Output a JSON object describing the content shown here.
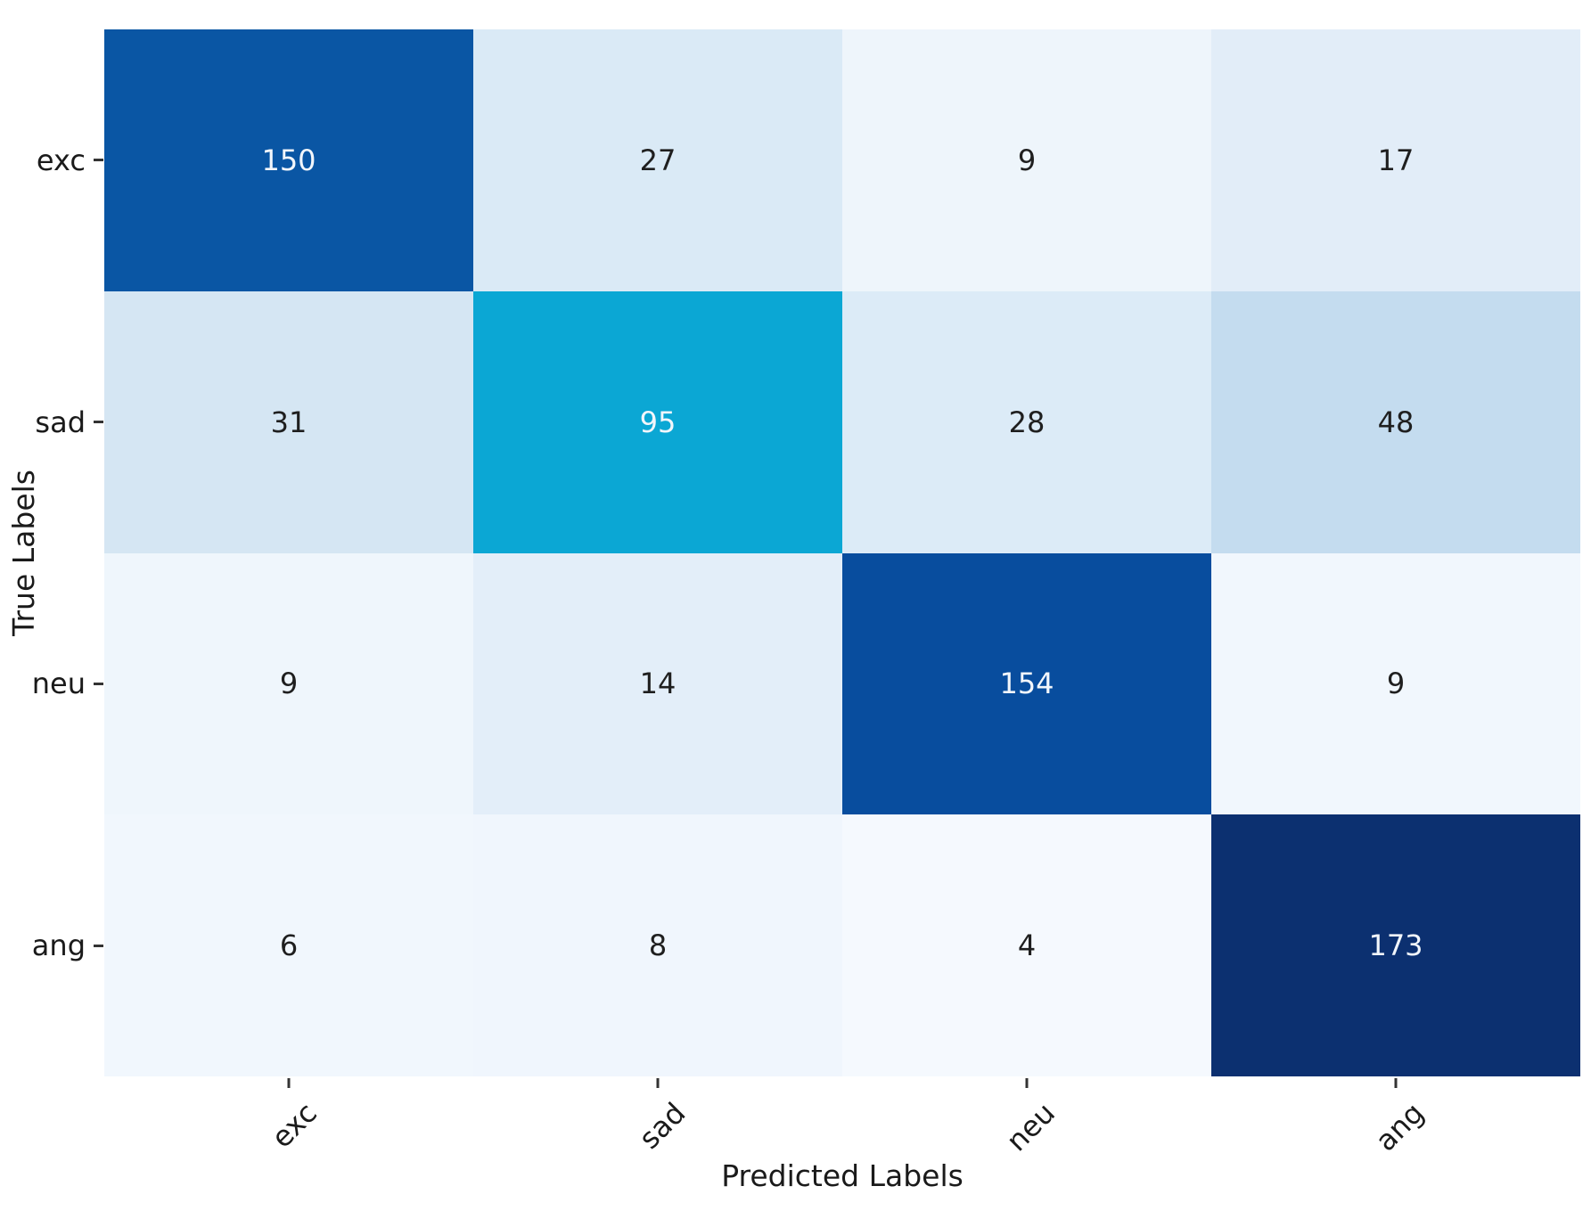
{
  "chart_data": {
    "type": "heatmap",
    "title": "",
    "xlabel": "Predicted Labels",
    "ylabel": "True Labels",
    "x_categories": [
      "exc",
      "sad",
      "neu",
      "ang"
    ],
    "y_categories": [
      "exc",
      "sad",
      "neu",
      "ang"
    ],
    "matrix": [
      [
        150,
        27,
        9,
        17
      ],
      [
        31,
        95,
        28,
        48
      ],
      [
        9,
        14,
        154,
        9
      ],
      [
        6,
        8,
        4,
        173
      ]
    ],
    "value_range": [
      4,
      173
    ],
    "cell_colors": [
      [
        "#0a56a4",
        "#daeaf6",
        "#eef5fb",
        "#e2edf8"
      ],
      [
        "#d5e6f3",
        "#0ba7d4",
        "#dcebf7",
        "#c4dcef"
      ],
      [
        "#eff6fc",
        "#e3eef9",
        "#084d9e",
        "#f1f7fd"
      ],
      [
        "#f1f7fd",
        "#f0f6fd",
        "#f5f9fe",
        "#0c3070"
      ]
    ],
    "annotation_colors": {
      "on_dark": "#f2f6fb",
      "on_light": "#1f1f1f"
    },
    "axis_text_color": "#1a1a1a",
    "tick_mark_color": "#333333",
    "background": "#ffffff",
    "grid": false,
    "legend": "none"
  }
}
